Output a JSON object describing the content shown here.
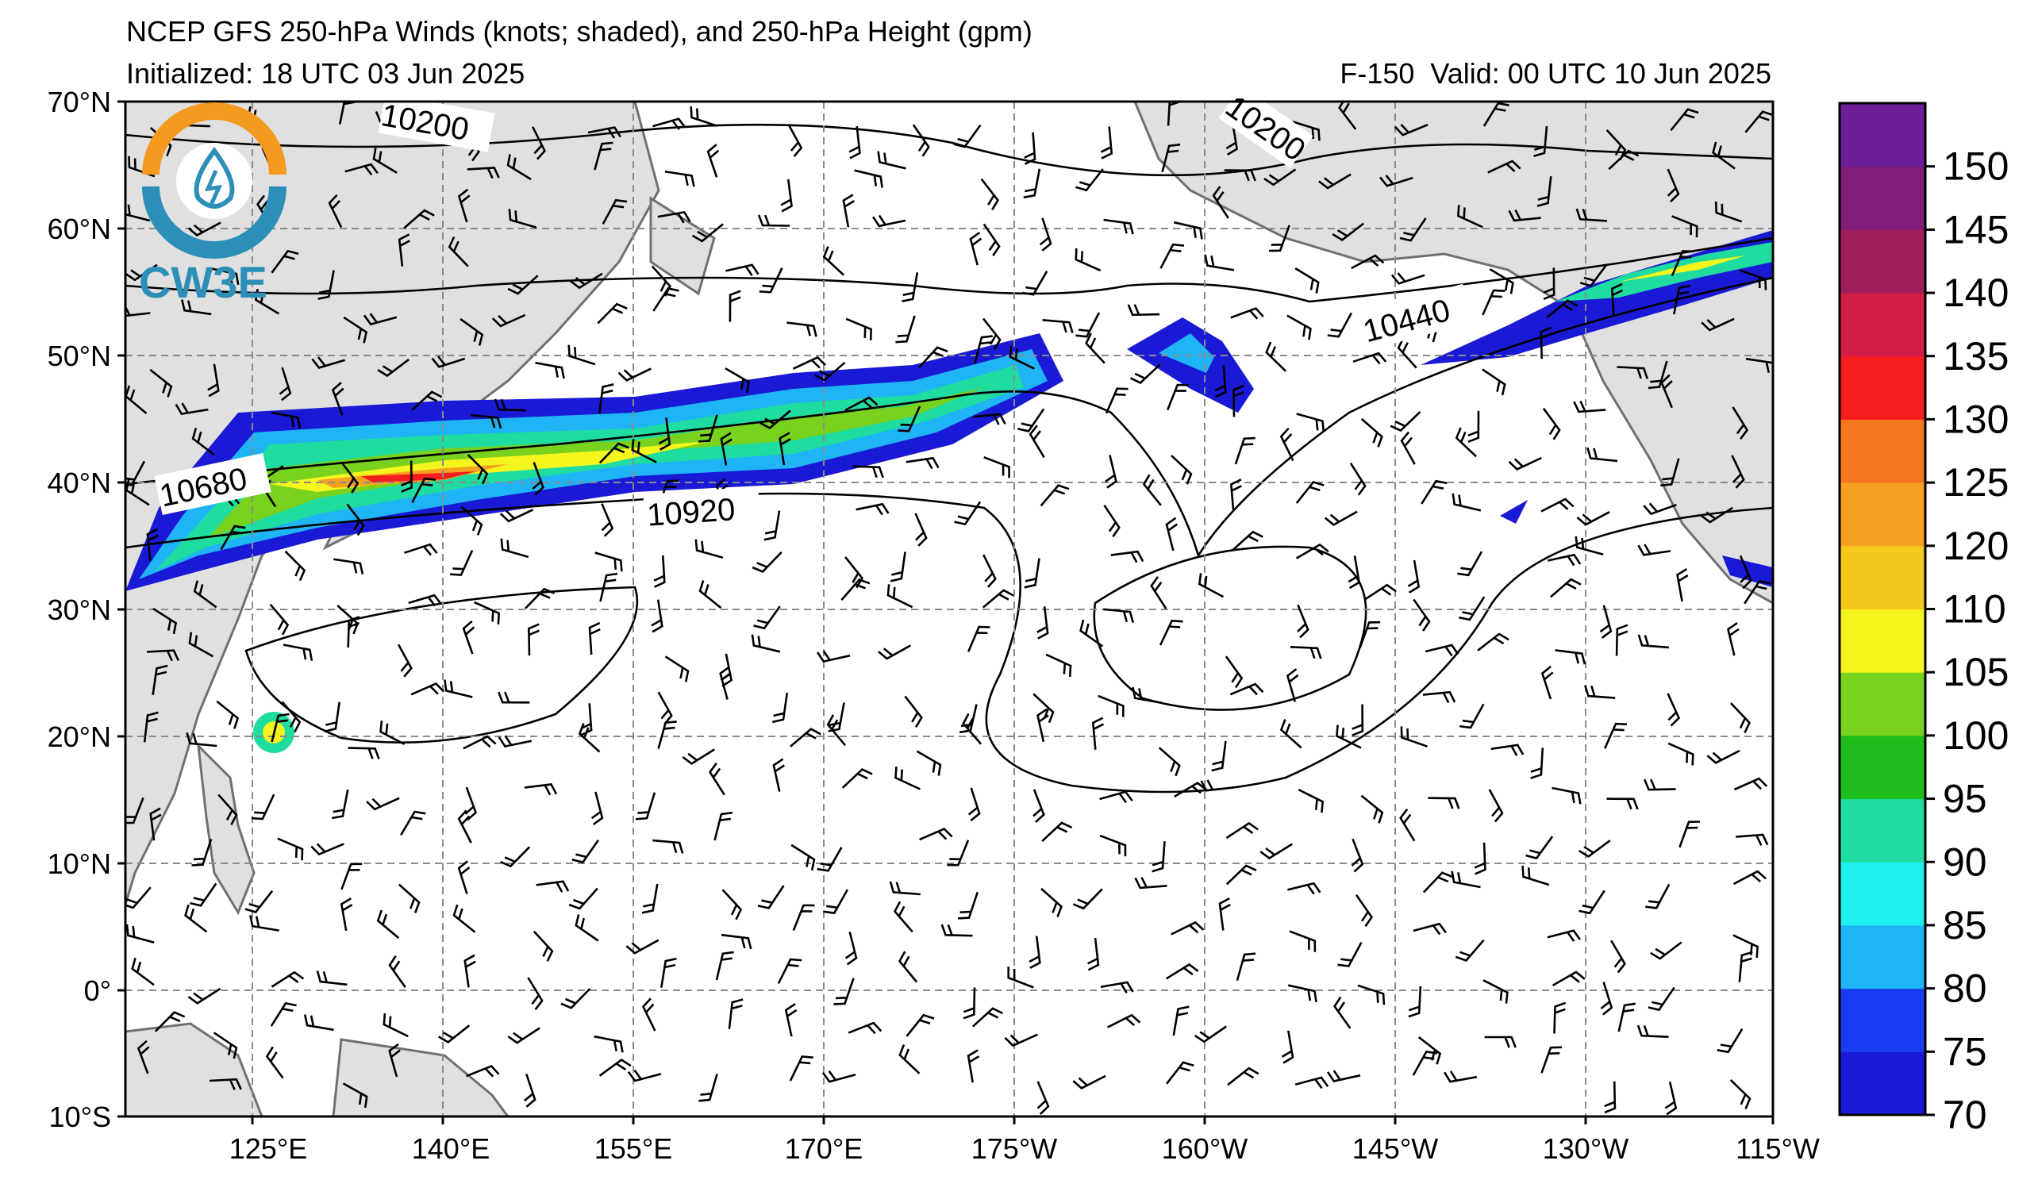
{
  "header": {
    "title": "NCEP GFS 250-hPa Winds (knots; shaded), and 250-hPa Height (gpm)",
    "initialized": "Initialized: 18 UTC 03 Jun 2025",
    "valid": "F-150  Valid: 00 UTC 10 Jun 2025"
  },
  "logo": {
    "text": "CW3E"
  },
  "axes": {
    "lat_labels": [
      "70°N",
      "60°N",
      "50°N",
      "40°N",
      "30°N",
      "20°N",
      "10°N",
      "0°",
      "10°S"
    ],
    "lon_labels": [
      "125°E",
      "140°E",
      "155°E",
      "170°E",
      "175°W",
      "160°W",
      "145°W",
      "130°W",
      "115°W"
    ]
  },
  "contour_labels": [
    "10200",
    "10200",
    "10440",
    "10680",
    "10920"
  ],
  "colorbar": {
    "labels": [
      "70",
      "75",
      "80",
      "85",
      "90",
      "95",
      "100",
      "105",
      "110",
      "120",
      "125",
      "130",
      "135",
      "140",
      "145",
      "150"
    ],
    "colors": [
      "#1a1ad6",
      "#1a3cf0",
      "#1fb4f5",
      "#1ef0f0",
      "#1fdca0",
      "#1ebe1e",
      "#78d21e",
      "#f5f51e",
      "#f5c81e",
      "#f5a01e",
      "#f57820",
      "#f51e1e",
      "#d21e46",
      "#a01e5a",
      "#821e78",
      "#6e1e96"
    ]
  },
  "colors": {
    "land": "#e0e0e0",
    "coast": "#707070",
    "grid": "#8a8a8a"
  }
}
